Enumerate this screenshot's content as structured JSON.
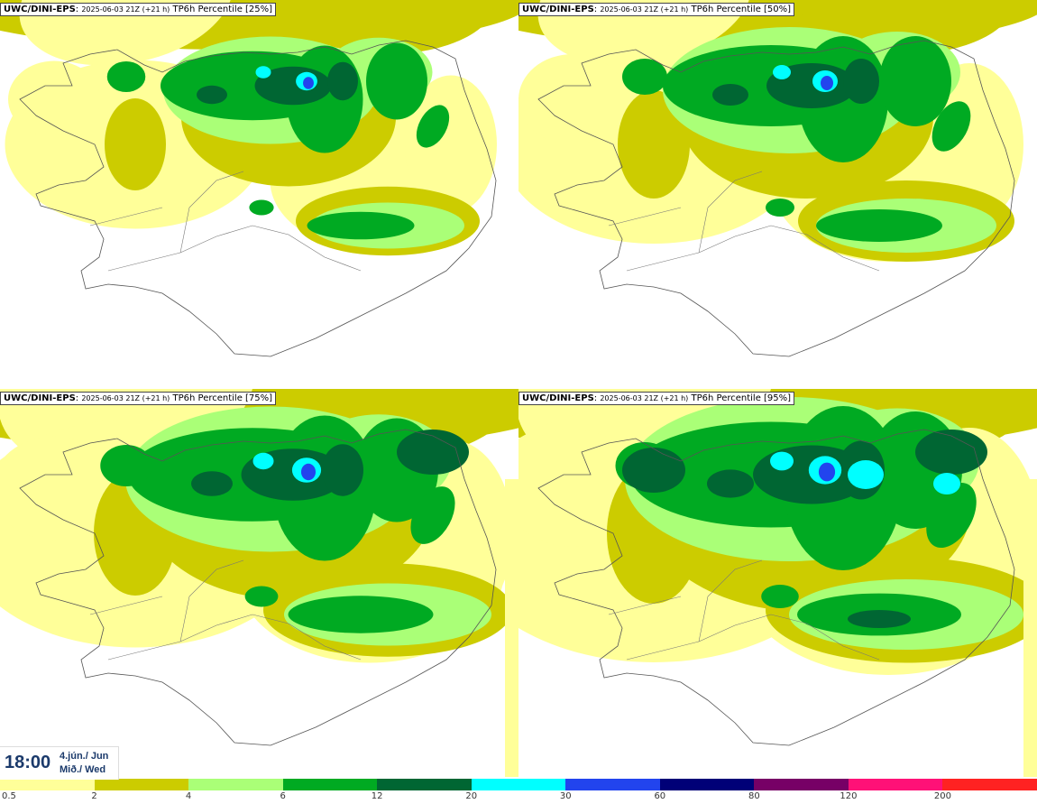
{
  "panels": [
    {
      "model": "UWC/DINI-EPS",
      "meta": "2025-06-03 21Z (+21 h)",
      "field": "TP6h Percentile [25%]",
      "percentile": 25
    },
    {
      "model": "UWC/DINI-EPS",
      "meta": "2025-06-03 21Z (+21 h)",
      "field": "TP6h Percentile [50%]",
      "percentile": 50
    },
    {
      "model": "UWC/DINI-EPS",
      "meta": "2025-06-03 21Z (+21 h)",
      "field": "TP6h Percentile [75%]",
      "percentile": 75
    },
    {
      "model": "UWC/DINI-EPS",
      "meta": "2025-06-03 21Z (+21 h)",
      "field": "TP6h Percentile [95%]",
      "percentile": 95
    }
  ],
  "time": {
    "clock": "18:00",
    "date_line": "4.jún./ Jun",
    "day_line": "Mið./ Wed"
  },
  "legend": {
    "labels": [
      "0.5",
      "2",
      "4",
      "6",
      "12",
      "20",
      "30",
      "60",
      "80",
      "120",
      "200"
    ],
    "colors": [
      "#ffff99",
      "#cccc00",
      "#aaff77",
      "#00aa22",
      "#006633",
      "#00ffff",
      "#2244ee",
      "#000077",
      "#770066",
      "#ff1177",
      "#ff2222"
    ]
  }
}
